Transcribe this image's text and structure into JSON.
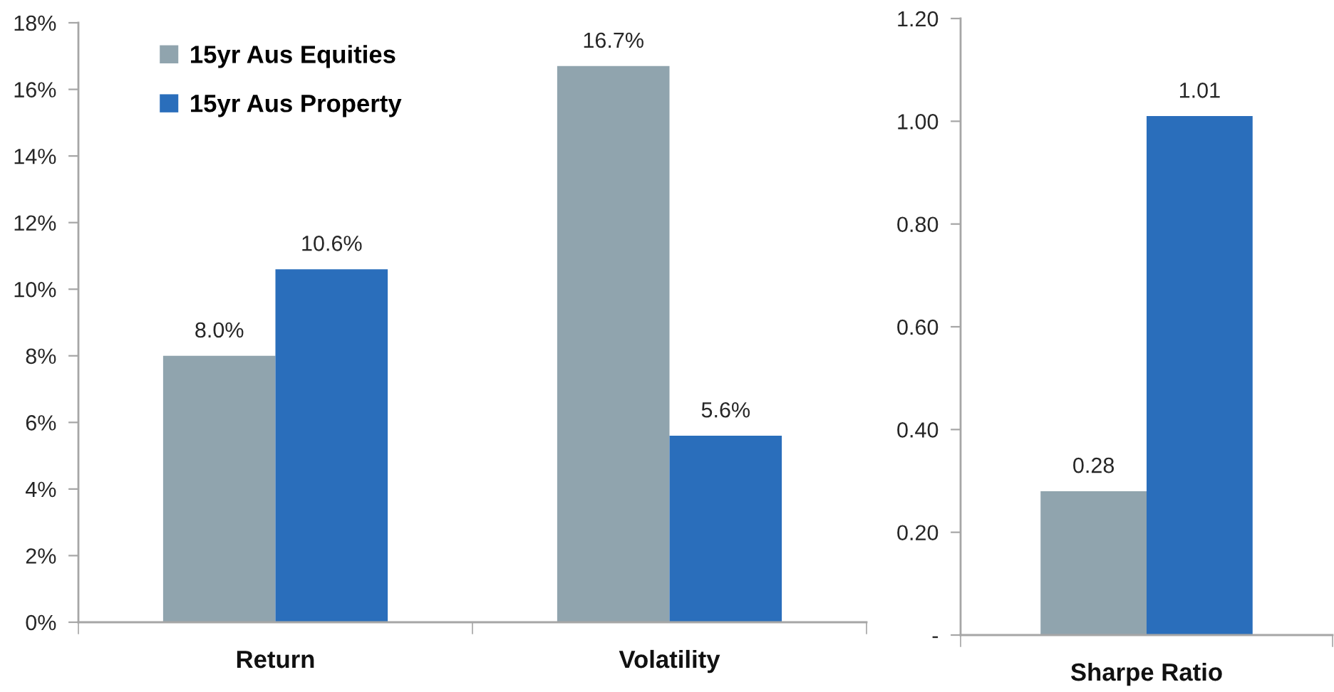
{
  "chart_data": [
    {
      "type": "bar",
      "categories": [
        "Return",
        "Volatility"
      ],
      "series": [
        {
          "name": "15yr Aus Equities",
          "color": "#90a4ae",
          "values": [
            8.0,
            16.7
          ],
          "value_labels": [
            "8.0%",
            "16.7%"
          ]
        },
        {
          "name": "15yr Aus Property",
          "color": "#2a6ebb",
          "values": [
            10.6,
            5.6
          ],
          "value_labels": [
            "10.6%",
            "5.6%"
          ]
        }
      ],
      "ylim": [
        0,
        18
      ],
      "yticks": [
        {
          "value": 0,
          "label": "0%"
        },
        {
          "value": 2,
          "label": "2%"
        },
        {
          "value": 4,
          "label": "4%"
        },
        {
          "value": 6,
          "label": "6%"
        },
        {
          "value": 8,
          "label": "8%"
        },
        {
          "value": 10,
          "label": "10%"
        },
        {
          "value": 12,
          "label": "12%"
        },
        {
          "value": 14,
          "label": "14%"
        },
        {
          "value": 16,
          "label": "16%"
        },
        {
          "value": 18,
          "label": "18%"
        }
      ],
      "legend": "top left"
    },
    {
      "type": "bar",
      "categories": [
        "Sharpe Ratio"
      ],
      "series": [
        {
          "color": "#90a4ae",
          "values": [
            0.28
          ],
          "value_labels": [
            "0.28"
          ]
        },
        {
          "color": "#2a6ebb",
          "values": [
            1.01
          ],
          "value_labels": [
            "1.01"
          ]
        }
      ],
      "ylim": [
        0,
        1.2
      ],
      "yticks": [
        {
          "value": 0,
          "label": "-"
        },
        {
          "value": 0.2,
          "label": "0.20"
        },
        {
          "value": 0.4,
          "label": "0.40"
        },
        {
          "value": 0.6,
          "label": "0.60"
        },
        {
          "value": 0.8,
          "label": "0.80"
        },
        {
          "value": 1.0,
          "label": "1.00"
        },
        {
          "value": 1.2,
          "label": "1.20"
        }
      ]
    }
  ]
}
